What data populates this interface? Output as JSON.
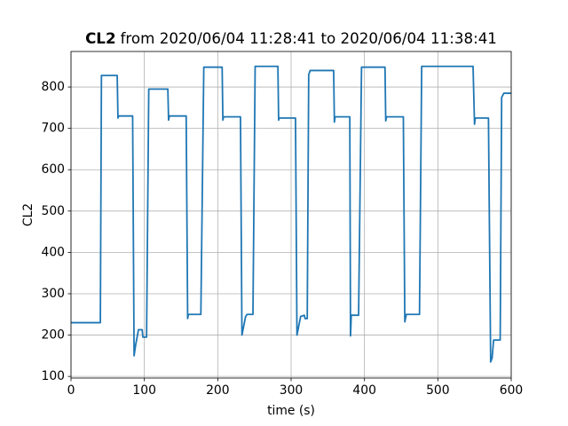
{
  "chart_data": {
    "type": "line",
    "title": "CL2",
    "subtitle": "from 2020/06/04 11:28:41 to 2020/06/04 11:38:41",
    "x_label": "time (s)",
    "y_label": "CL2",
    "x": [
      0,
      40,
      41.5,
      63,
      64,
      65,
      84,
      86,
      88,
      92,
      97,
      98,
      103,
      106,
      132,
      133,
      134,
      157,
      159,
      160,
      177,
      181,
      206,
      207,
      208,
      231,
      233,
      238,
      240,
      248,
      251,
      282,
      283,
      284,
      306,
      308,
      313,
      318,
      319,
      322,
      324,
      326,
      358,
      359,
      360,
      380,
      381,
      382,
      392,
      396,
      428,
      429,
      430,
      453,
      455,
      457,
      475,
      478,
      548,
      550,
      551,
      569,
      572,
      574,
      576,
      585,
      587,
      590,
      600
    ],
    "series": [
      {
        "name": "CL2",
        "color": "#1f77b4",
        "values": [
          230,
          230,
          828,
          828,
          725,
          730,
          730,
          150,
          175,
          213,
          213,
          195,
          195,
          795,
          795,
          720,
          730,
          730,
          240,
          250,
          250,
          848,
          848,
          720,
          728,
          728,
          200,
          245,
          250,
          250,
          850,
          850,
          720,
          725,
          725,
          200,
          245,
          248,
          240,
          240,
          830,
          840,
          840,
          715,
          728,
          728,
          198,
          248,
          248,
          848,
          848,
          718,
          728,
          728,
          232,
          250,
          250,
          850,
          850,
          710,
          725,
          725,
          135,
          145,
          188,
          188,
          775,
          785,
          785
        ]
      }
    ],
    "xlim": [
      0,
      600
    ],
    "ylim": [
      96,
      886
    ],
    "xticks": [
      0,
      100,
      200,
      300,
      400,
      500,
      600
    ],
    "yticks": [
      100,
      200,
      300,
      400,
      500,
      600,
      700,
      800
    ],
    "grid": true
  }
}
